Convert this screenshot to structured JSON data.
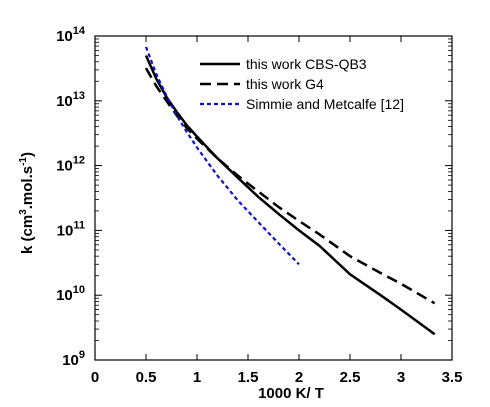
{
  "chart_data": {
    "type": "line",
    "title": "",
    "xlabel": "1000 K/ T",
    "ylabel": "k (cm3.mol.s-1)",
    "ylabel_parts": {
      "prefix": "k (cm",
      "sup1": "3",
      "middle": ".mol.s",
      "sup2": "-1",
      "suffix": ")"
    },
    "xlim": [
      0,
      3.5
    ],
    "ylim": [
      1000000000,
      100000000000000
    ],
    "yscale": "log",
    "grid": false,
    "legend_position": "top-right",
    "x_ticks": [
      "0",
      "0.5",
      "1",
      "1.5",
      "2",
      "2.5",
      "3",
      "3.5"
    ],
    "x_tick_values": [
      0,
      0.5,
      1,
      1.5,
      2,
      2.5,
      3,
      3.5
    ],
    "y_ticks": [
      {
        "value": 1000000000,
        "base": "10",
        "exp": "9"
      },
      {
        "value": 10000000000,
        "base": "10",
        "exp": "10"
      },
      {
        "value": 100000000000,
        "base": "10",
        "exp": "11"
      },
      {
        "value": 1000000000000,
        "base": "10",
        "exp": "12"
      },
      {
        "value": 10000000000000,
        "base": "10",
        "exp": "13"
      },
      {
        "value": 100000000000000,
        "base": "10",
        "exp": "14"
      }
    ],
    "series": [
      {
        "name": "this work CBS-QB3",
        "style": "solid",
        "color": "#000000",
        "x": [
          0.5,
          0.6,
          0.7,
          0.8,
          0.9,
          1.0,
          1.2,
          1.4,
          1.6,
          1.8,
          2.0,
          2.2,
          2.5,
          2.8,
          3.0,
          3.33
        ],
        "y": [
          50000000000000.0,
          22000000000000.0,
          11500000000000.0,
          6800000000000.0,
          4200000000000.0,
          2800000000000.0,
          1300000000000.0,
          650000000000.0,
          330000000000.0,
          180000000000.0,
          100000000000.0,
          58000000000.0,
          21000000000.0,
          10000000000.0,
          6000000000.0,
          2500000000.0
        ]
      },
      {
        "name": "this work G4",
        "style": "dashed",
        "color": "#000000",
        "x": [
          0.5,
          0.6,
          0.7,
          0.8,
          0.9,
          1.0,
          1.2,
          1.4,
          1.6,
          1.8,
          2.0,
          2.2,
          2.5,
          2.8,
          3.0,
          3.33
        ],
        "y": [
          32000000000000.0,
          17000000000000.0,
          10000000000000.0,
          6000000000000.0,
          3800000000000.0,
          2600000000000.0,
          1300000000000.0,
          700000000000.0,
          400000000000.0,
          230000000000.0,
          140000000000.0,
          87000000000.0,
          40000000000.0,
          22000000000.0,
          15000000000.0,
          7500000000.0
        ]
      },
      {
        "name": "Simmie and Metcalfe [12]",
        "style": "dotted",
        "color": "#1111cc",
        "x": [
          0.5,
          0.6,
          0.7,
          0.8,
          0.9,
          1.0,
          1.2,
          1.4,
          1.6,
          1.8,
          2.0
        ],
        "y": [
          68000000000000.0,
          26000000000000.0,
          12000000000000.0,
          6000000000000.0,
          3300000000000.0,
          1900000000000.0,
          700000000000.0,
          290000000000.0,
          135000000000.0,
          63000000000.0,
          30000000000.0
        ]
      }
    ]
  }
}
